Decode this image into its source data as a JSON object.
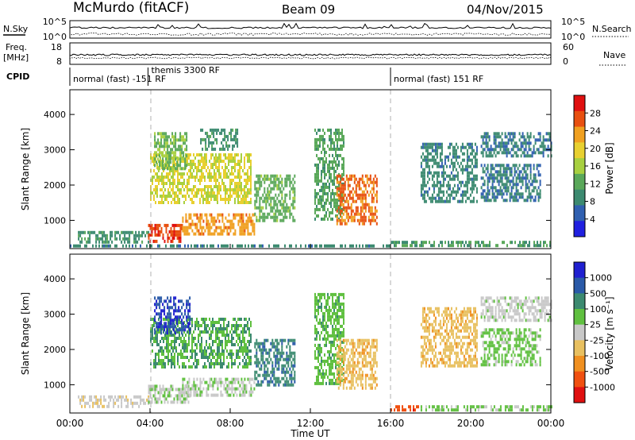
{
  "header": {
    "station": "McMurdo (fitACF)",
    "beam": "Beam 09",
    "date": "04/Nov/2015"
  },
  "strips": {
    "nsky_label": "N.Sky",
    "nsky_ticks": [
      "10^5",
      "10^0"
    ],
    "nsearch_label": "N.Search",
    "nsearch_ticks": [
      "10^5",
      "10^0"
    ],
    "freq_label": "Freq.",
    "freq_unit": "[MHz]",
    "freq_ticks": [
      "18",
      "8"
    ],
    "nave_label": "Nave",
    "nave_ticks": [
      "60",
      "0"
    ],
    "cpid_label": "CPID",
    "cpid_segments": [
      {
        "label": "normal (fast) -151 RF",
        "start_hour": 0
      },
      {
        "label": "themis 3300 RF",
        "start_hour": 3.9
      },
      {
        "label": "normal (fast) 151 RF",
        "start_hour": 16
      }
    ]
  },
  "chart_data": [
    {
      "type": "heatmap",
      "panel": "power",
      "ylabel": "Slant Range [km]",
      "colorbar_label": "Power [dB]",
      "colorbar_ticks": [
        "28",
        "24",
        "20",
        "16",
        "12",
        "8",
        "4"
      ],
      "colorbar_range": [
        0,
        30
      ],
      "colors": [
        "#2020e0",
        "#3060b0",
        "#3c8a70",
        "#5aa85a",
        "#a8d040",
        "#e8d030",
        "#f0a020",
        "#e85010",
        "#e01010"
      ],
      "ylim": [
        200,
        4700
      ],
      "yticks": [
        "1000",
        "2000",
        "3000",
        "4000"
      ],
      "xlim_hours": [
        0,
        24
      ],
      "grid": "dashed vertical at 04:00 and 16:00",
      "regions": [
        {
          "t": [
            0.4,
            3.9
          ],
          "range_km": [
            420,
            700
          ],
          "value": 9
        },
        {
          "t": [
            3.9,
            5.6
          ],
          "range_km": [
            400,
            900
          ],
          "value": 26
        },
        {
          "t": [
            5.6,
            9.2
          ],
          "range_km": [
            600,
            1200
          ],
          "value": 22
        },
        {
          "t": [
            4.0,
            9.0
          ],
          "range_km": [
            1500,
            2900
          ],
          "value": 17
        },
        {
          "t": [
            4.2,
            5.8
          ],
          "range_km": [
            2500,
            3500
          ],
          "value": 13
        },
        {
          "t": [
            6.5,
            8.4
          ],
          "range_km": [
            3000,
            3600
          ],
          "value": 9
        },
        {
          "t": [
            9.2,
            11.2
          ],
          "range_km": [
            1000,
            2300
          ],
          "value": 12
        },
        {
          "t": [
            12.2,
            13.7
          ],
          "range_km": [
            1000,
            3600
          ],
          "value": 11
        },
        {
          "t": [
            13.3,
            15.3
          ],
          "range_km": [
            900,
            2300
          ],
          "value": 24
        },
        {
          "t": [
            0.0,
            16.0
          ],
          "range_km": [
            250,
            320
          ],
          "value": 8
        },
        {
          "t": [
            16.0,
            24.0
          ],
          "range_km": [
            250,
            420
          ],
          "value": 10
        },
        {
          "t": [
            17.5,
            20.3
          ],
          "range_km": [
            1500,
            3200
          ],
          "value": 8
        },
        {
          "t": [
            20.5,
            23.5
          ],
          "range_km": [
            1600,
            2600
          ],
          "value": 7
        },
        {
          "t": [
            20.5,
            24.0
          ],
          "range_km": [
            2800,
            3500
          ],
          "value": 7
        }
      ]
    },
    {
      "type": "heatmap",
      "panel": "velocity",
      "ylabel": "Slant Range [km]",
      "xlabel": "Time UT",
      "colorbar_label": "Velocity [m s⁻¹]",
      "colorbar_ticks": [
        "1000",
        "500",
        "100",
        "25",
        "-25",
        "-100",
        "-500",
        "-1000"
      ],
      "colorbar_range": [
        -1200,
        1200
      ],
      "colors": [
        "#e01010",
        "#f05010",
        "#f09020",
        "#e8c060",
        "#c8c8c8",
        "#60c040",
        "#3c8a70",
        "#2a5aa8",
        "#2020d0"
      ],
      "ylim": [
        200,
        4700
      ],
      "yticks": [
        "1000",
        "2000",
        "3000",
        "4000"
      ],
      "xlim_hours": [
        0,
        24
      ],
      "xticks": [
        "00:00",
        "04:00",
        "08:00",
        "12:00",
        "16:00",
        "20:00",
        "00:00"
      ],
      "grid": "dashed vertical at 04:00 and 16:00",
      "regions": [
        {
          "t": [
            0.4,
            3.9
          ],
          "range_km": [
            420,
            700
          ],
          "value": -50
        },
        {
          "t": [
            3.9,
            6.0
          ],
          "range_km": [
            500,
            1000
          ],
          "value": 80
        },
        {
          "t": [
            5.6,
            9.2
          ],
          "range_km": [
            700,
            1200
          ],
          "value": 70
        },
        {
          "t": [
            4.0,
            9.0
          ],
          "range_km": [
            1500,
            2900
          ],
          "value": 400
        },
        {
          "t": [
            4.2,
            6.0
          ],
          "range_km": [
            2500,
            3500
          ],
          "value": 900
        },
        {
          "t": [
            9.2,
            11.2
          ],
          "range_km": [
            1000,
            2300
          ],
          "value": 600
        },
        {
          "t": [
            12.2,
            13.7
          ],
          "range_km": [
            1000,
            3600
          ],
          "value": 300
        },
        {
          "t": [
            13.3,
            15.3
          ],
          "range_km": [
            900,
            2300
          ],
          "value": -300
        },
        {
          "t": [
            16.0,
            17.5
          ],
          "range_km": [
            250,
            420
          ],
          "value": -800
        },
        {
          "t": [
            17.5,
            24.0
          ],
          "range_km": [
            250,
            420
          ],
          "value": 200
        },
        {
          "t": [
            17.5,
            20.3
          ],
          "range_km": [
            1500,
            3200
          ],
          "value": -300
        },
        {
          "t": [
            20.5,
            23.5
          ],
          "range_km": [
            1600,
            2600
          ],
          "value": 200
        },
        {
          "t": [
            20.5,
            24.0
          ],
          "range_km": [
            2800,
            3500
          ],
          "value": 20
        }
      ]
    }
  ]
}
